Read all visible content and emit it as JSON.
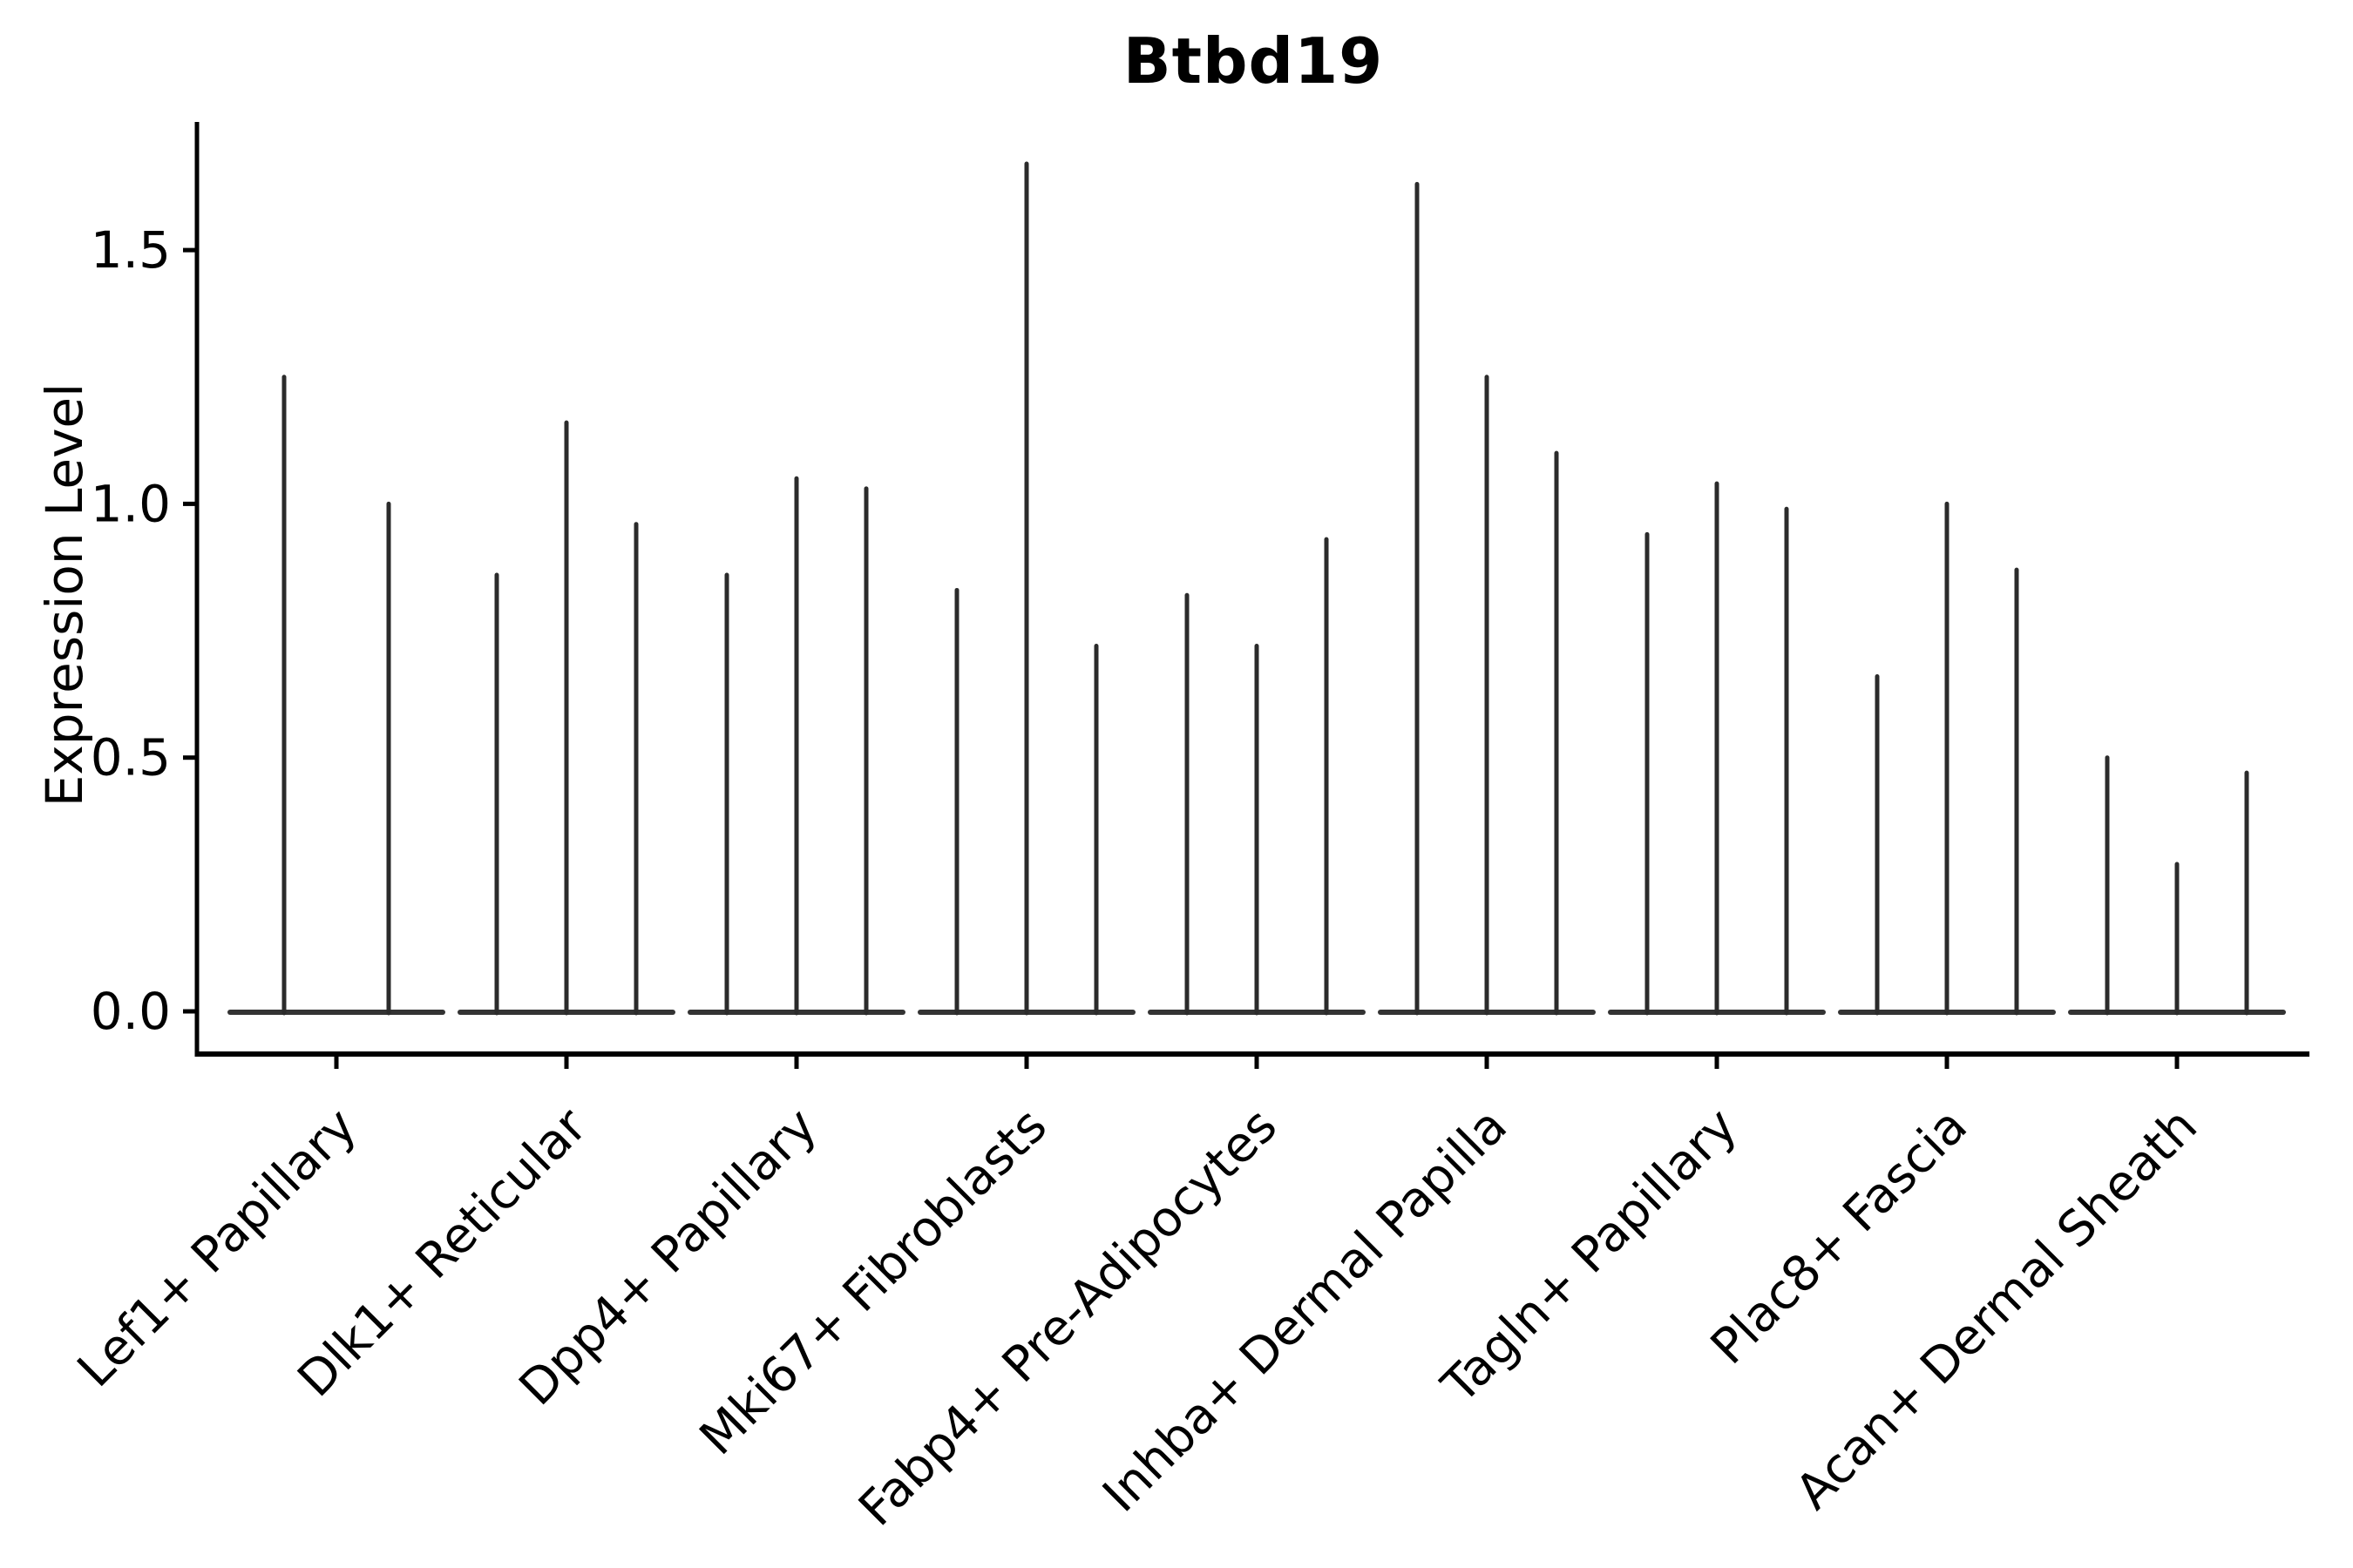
{
  "figure": {
    "title": "Btbd19"
  },
  "axes": {
    "ylabel": "Expression Level",
    "ytick_labels": [
      "0.0",
      "0.5",
      "1.0",
      "1.5"
    ]
  },
  "colors": {
    "spike": "#2b2b2b",
    "violin_base": "#333333",
    "axis": "#000000",
    "text": "#000000",
    "background": "#ffffff"
  },
  "chart_data": {
    "type": "violin",
    "title": "Btbd19",
    "xlabel": "",
    "ylabel": "Expression Level",
    "yticks": [
      0.0,
      0.5,
      1.0,
      1.5
    ],
    "ylim": [
      -0.08,
      1.75
    ],
    "grid": false,
    "legend": "none",
    "note": "Needle-thin violins flattened at 0; each group holds 2-3 violins; violin_peaks = max expression reached by each violin in the group",
    "categories": [
      "Lef1+ Papillary",
      "Dlk1+ Reticular",
      "Dpp4+ Papillary",
      "Mki67+ Fibroblasts",
      "Fabp4+ Pre-Adipocytes",
      "Inhba+ Dermal Papilla",
      "Tagln+ Papillary",
      "Plac8+ Fascia",
      "Acan+ Dermal Sheath"
    ],
    "series": [
      {
        "name": "Lef1+ Papillary",
        "violin_peaks": [
          1.25,
          1.0
        ]
      },
      {
        "name": "Dlk1+ Reticular",
        "violin_peaks": [
          0.86,
          1.16,
          0.96
        ]
      },
      {
        "name": "Dpp4+ Papillary",
        "violin_peaks": [
          0.86,
          1.05,
          1.03
        ]
      },
      {
        "name": "Mki67+ Fibroblasts",
        "violin_peaks": [
          0.83,
          1.67,
          0.72
        ]
      },
      {
        "name": "Fabp4+ Pre-Adipocytes",
        "violin_peaks": [
          0.82,
          0.72,
          0.93
        ]
      },
      {
        "name": "Inhba+ Dermal Papilla",
        "violin_peaks": [
          1.63,
          1.25,
          1.1
        ]
      },
      {
        "name": "Tagln+ Papillary",
        "violin_peaks": [
          0.94,
          1.04,
          0.99
        ]
      },
      {
        "name": "Plac8+ Fascia",
        "violin_peaks": [
          0.66,
          1.0,
          0.87
        ]
      },
      {
        "name": "Acan+ Dermal Sheath",
        "violin_peaks": [
          0.5,
          0.29,
          0.47
        ]
      }
    ]
  }
}
